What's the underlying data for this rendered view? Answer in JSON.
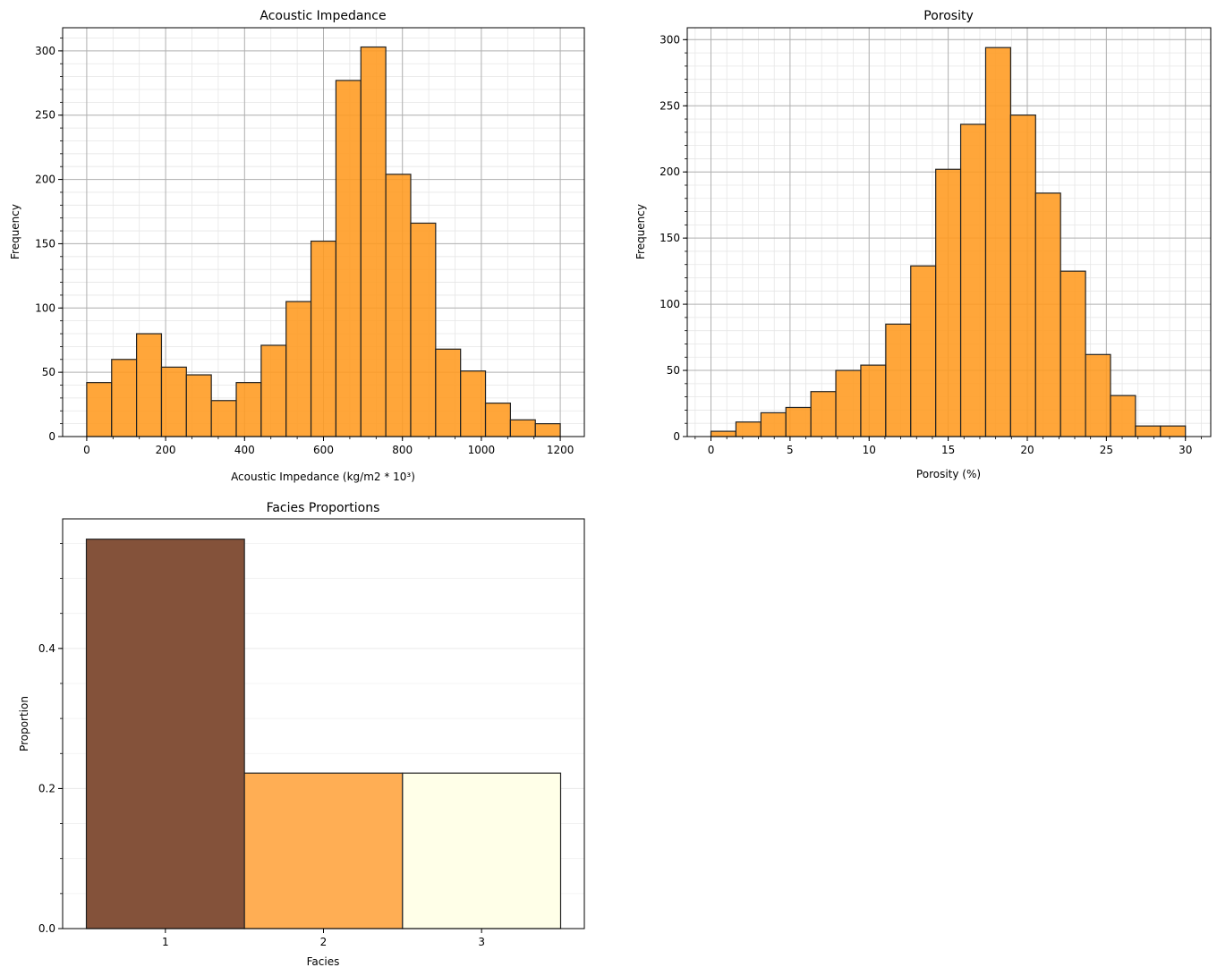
{
  "chart_data": [
    {
      "type": "bar",
      "subtype": "histogram",
      "title": "Acoustic Impedance",
      "xlabel": "Acoustic Impedance (kg/m2 * 10³)",
      "ylabel": "Frequency",
      "bin_range": [
        0,
        1200
      ],
      "values": [
        42,
        60,
        80,
        54,
        48,
        28,
        42,
        71,
        105,
        152,
        277,
        303,
        204,
        166,
        68,
        51,
        26,
        13,
        10
      ],
      "xlim": [
        -61,
        1261
      ],
      "ylim": [
        0,
        318
      ],
      "xticks": [
        0,
        200,
        400,
        600,
        800,
        1000,
        1200
      ],
      "yticks": [
        0,
        50,
        100,
        150,
        200,
        250,
        300
      ],
      "x_minor": 66.67,
      "y_minor": 10,
      "grid": true,
      "color": "#ff9a1f",
      "edge_color": "#222222"
    },
    {
      "type": "bar",
      "subtype": "histogram",
      "title": "Porosity",
      "xlabel": "Porosity (%)",
      "ylabel": "Frequency",
      "bin_range": [
        0,
        30
      ],
      "values": [
        4,
        11,
        18,
        22,
        34,
        50,
        54,
        85,
        129,
        202,
        236,
        294,
        243,
        184,
        125,
        62,
        31,
        8,
        8
      ],
      "xlim": [
        -1.5,
        31.6
      ],
      "ylim": [
        0,
        309
      ],
      "xticks": [
        0,
        5,
        10,
        15,
        20,
        25,
        30
      ],
      "yticks": [
        0,
        50,
        100,
        150,
        200,
        250,
        300
      ],
      "x_minor": 1,
      "y_minor": 10,
      "grid": true,
      "color": "#ff9a1f",
      "edge_color": "#222222"
    },
    {
      "type": "bar",
      "title": "Facies Proportions",
      "xlabel": "Facies",
      "ylabel": "Proportion",
      "categories": [
        "1",
        "2",
        "3"
      ],
      "values": [
        0.556,
        0.222,
        0.222
      ],
      "colors": [
        "#84523a",
        "#ffae54",
        "#ffffe8"
      ],
      "xlim": [
        0.35,
        3.65
      ],
      "ylim": [
        0,
        0.585
      ],
      "yticks": [
        0.0,
        0.2,
        0.4
      ],
      "ytick_labels": [
        "0.0",
        "0.2",
        "0.4"
      ],
      "y_minor": 0.05,
      "grid": true,
      "edge_color": "#222222"
    }
  ]
}
